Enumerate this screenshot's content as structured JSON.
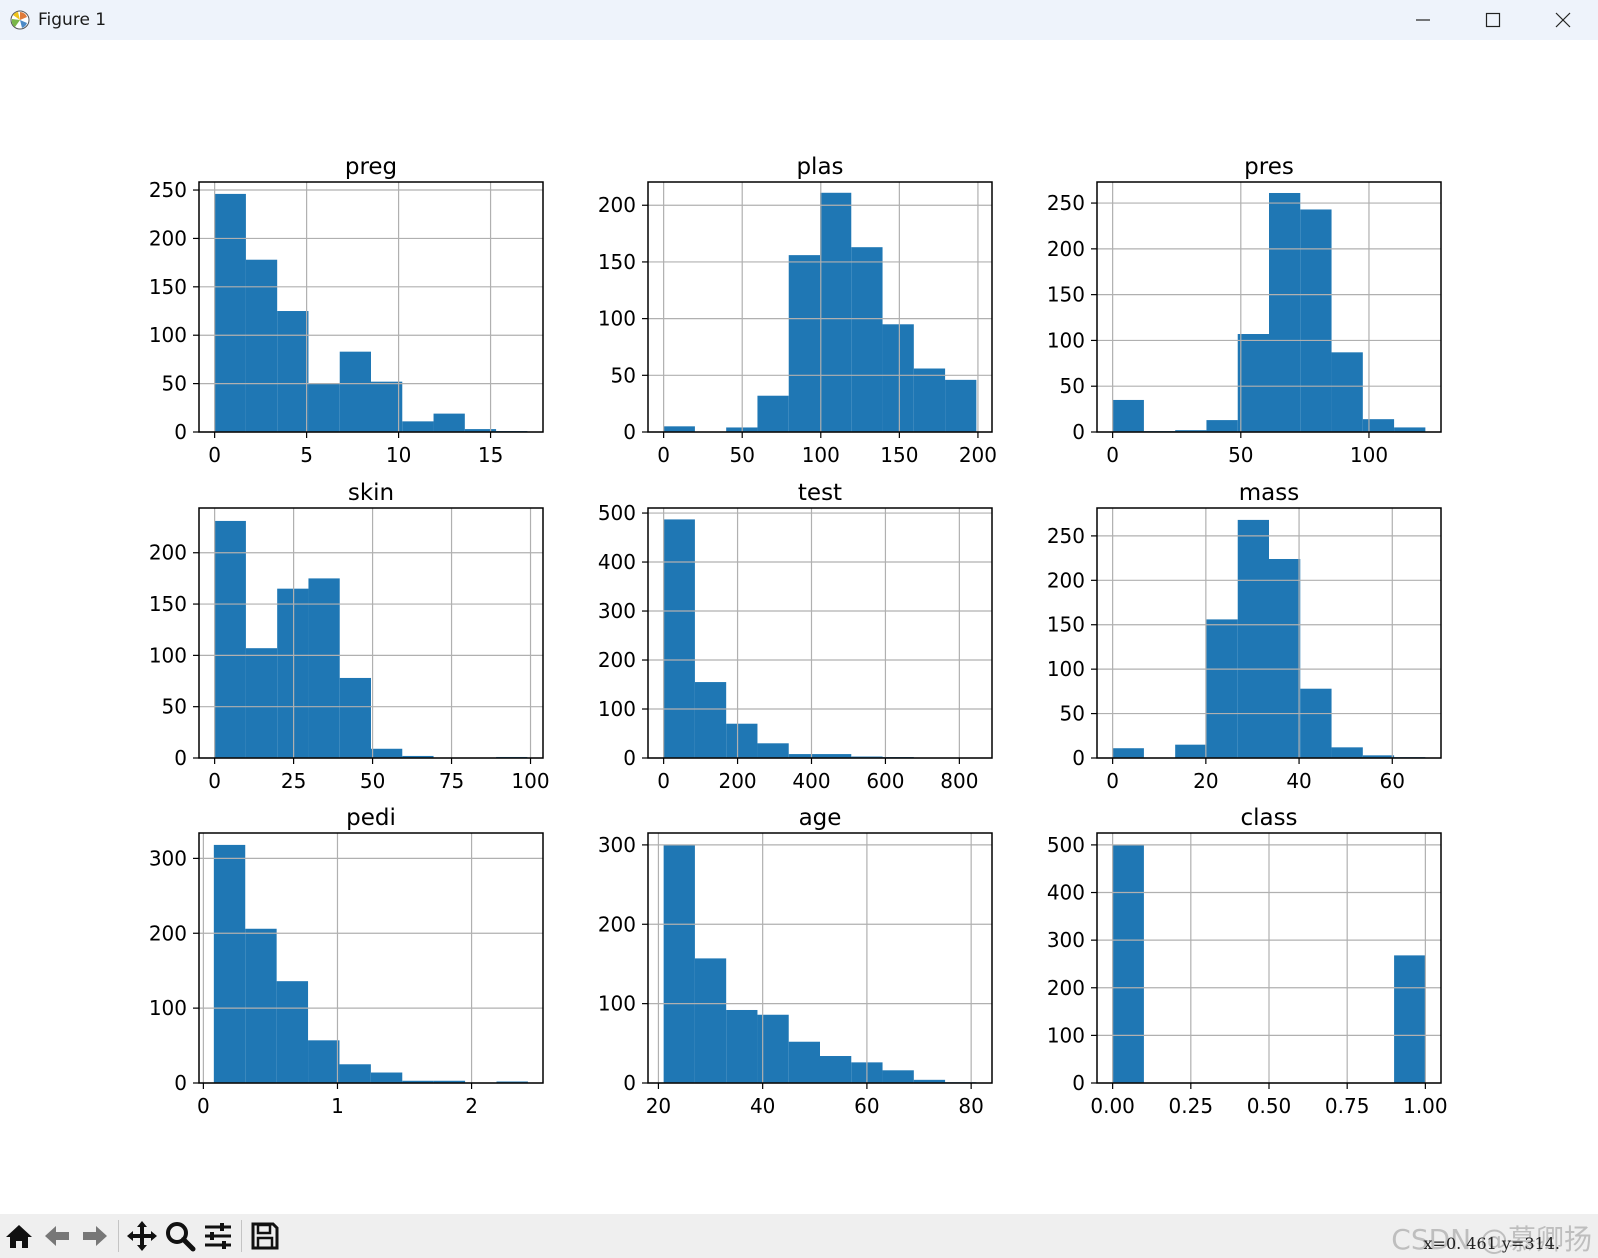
{
  "window": {
    "title": "Figure 1",
    "icon": "matplotlib-logo-icon"
  },
  "status": {
    "coords": "x=0. 461  y=314."
  },
  "watermark": "CSDN @慕卿扬",
  "colors": {
    "bar": "#1f77b4",
    "grid": "#b0b0b0",
    "axes": "#000000"
  },
  "chart_data": [
    {
      "type": "bar",
      "title": "preg",
      "xlim": [
        -0.85,
        17.85
      ],
      "ylim": [
        0,
        258.3
      ],
      "xticks": [
        0,
        5,
        10,
        15
      ],
      "yticks": [
        0,
        50,
        100,
        150,
        200,
        250
      ],
      "bin_start": 0,
      "bin_width": 1.7,
      "values": [
        246,
        178,
        125,
        50,
        83,
        52,
        11,
        19,
        3,
        1
      ]
    },
    {
      "type": "bar",
      "title": "plas",
      "xlim": [
        -9.95,
        208.95
      ],
      "ylim": [
        0,
        220.5
      ],
      "xticks": [
        0,
        50,
        100,
        150,
        200
      ],
      "yticks": [
        0,
        50,
        100,
        150,
        200
      ],
      "bin_start": 0,
      "bin_width": 19.9,
      "values": [
        5,
        0,
        4,
        32,
        156,
        211,
        163,
        95,
        56,
        46
      ]
    },
    {
      "type": "bar",
      "title": "pres",
      "xlim": [
        -6.1,
        128.1
      ],
      "ylim": [
        0,
        273
      ],
      "xticks": [
        0,
        50,
        100
      ],
      "yticks": [
        0,
        50,
        100,
        150,
        200,
        250
      ],
      "bin_start": 0,
      "bin_width": 12.2,
      "values": [
        35,
        1,
        2,
        13,
        107,
        261,
        243,
        87,
        14,
        5
      ]
    },
    {
      "type": "bar",
      "title": "skin",
      "xlim": [
        -4.95,
        103.95
      ],
      "ylim": [
        0,
        243.6
      ],
      "xticks": [
        0,
        25,
        50,
        75,
        100
      ],
      "yticks": [
        0,
        50,
        100,
        150,
        200
      ],
      "bin_start": 0,
      "bin_width": 9.9,
      "values": [
        231,
        107,
        165,
        175,
        78,
        9,
        2,
        0,
        0,
        1
      ]
    },
    {
      "type": "bar",
      "title": "test",
      "xlim": [
        -42.3,
        888.3
      ],
      "ylim": [
        0,
        510.3
      ],
      "xticks": [
        0,
        200,
        400,
        600,
        800
      ],
      "yticks": [
        0,
        100,
        200,
        300,
        400,
        500
      ],
      "bin_start": 0,
      "bin_width": 84.6,
      "values": [
        487,
        155,
        70,
        30,
        8,
        8,
        3,
        2,
        0,
        1
      ]
    },
    {
      "type": "bar",
      "title": "mass",
      "xlim": [
        -3.355,
        70.455
      ],
      "ylim": [
        0,
        281.4
      ],
      "xticks": [
        0,
        20,
        40,
        60
      ],
      "yticks": [
        0,
        50,
        100,
        150,
        200,
        250
      ],
      "bin_start": 0,
      "bin_width": 6.71,
      "values": [
        11,
        0,
        15,
        156,
        268,
        224,
        78,
        12,
        3,
        1
      ]
    },
    {
      "type": "bar",
      "title": "pedi",
      "xlim": [
        -0.0326,
        2.5326
      ],
      "ylim": [
        0,
        333.9
      ],
      "xticks": [
        0,
        1,
        2
      ],
      "yticks": [
        0,
        100,
        200,
        300
      ],
      "bin_start": 0.078,
      "bin_width": 0.2342,
      "values": [
        318,
        206,
        136,
        57,
        25,
        14,
        3,
        3,
        0,
        2
      ]
    },
    {
      "type": "bar",
      "title": "age",
      "xlim": [
        18,
        84
      ],
      "ylim": [
        0,
        315
      ],
      "xticks": [
        20,
        40,
        60,
        80
      ],
      "yticks": [
        0,
        100,
        200,
        300
      ],
      "bin_start": 21,
      "bin_width": 6,
      "values": [
        300,
        157,
        92,
        86,
        52,
        34,
        26,
        16,
        4,
        1
      ]
    },
    {
      "type": "bar",
      "title": "class",
      "xlim": [
        -0.05,
        1.05
      ],
      "ylim": [
        0,
        525
      ],
      "xticks": [
        0.0,
        0.25,
        0.5,
        0.75,
        1.0
      ],
      "xtick_labels": [
        "0.00",
        "0.25",
        "0.50",
        "0.75",
        "1.00"
      ],
      "yticks": [
        0,
        100,
        200,
        300,
        400,
        500
      ],
      "bin_start": 0,
      "bin_width": 0.1,
      "values": [
        500,
        0,
        0,
        0,
        0,
        0,
        0,
        0,
        0,
        268
      ]
    }
  ]
}
